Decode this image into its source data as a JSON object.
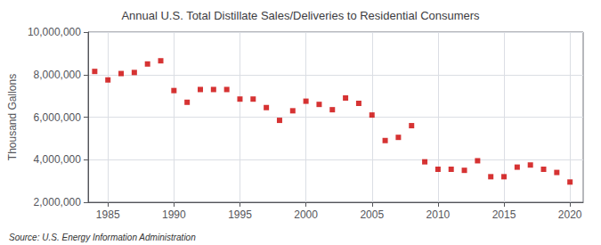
{
  "chart_data": {
    "type": "scatter",
    "title": "Annual U.S. Total Distillate Sales/Deliveries to Residential Consumers",
    "ylabel": "Thousand Gallons",
    "annotations": [
      "Source: U.S. Energy Information Administration"
    ],
    "x": [
      1984,
      1985,
      1986,
      1987,
      1988,
      1989,
      1990,
      1991,
      1992,
      1993,
      1994,
      1995,
      1996,
      1997,
      1998,
      1999,
      2000,
      2001,
      2002,
      2003,
      2004,
      2005,
      2006,
      2007,
      2008,
      2009,
      2010,
      2011,
      2012,
      2013,
      2014,
      2015,
      2016,
      2017,
      2018,
      2019,
      2020
    ],
    "values": [
      8150000,
      7750000,
      8050000,
      8100000,
      8500000,
      8650000,
      7250000,
      6700000,
      7300000,
      7300000,
      7300000,
      6850000,
      6850000,
      6450000,
      5850000,
      6300000,
      6750000,
      6600000,
      6350000,
      6900000,
      6650000,
      6100000,
      4900000,
      5050000,
      5600000,
      3900000,
      3550000,
      3550000,
      3500000,
      3950000,
      3200000,
      3200000,
      3650000,
      3750000,
      3550000,
      3400000,
      2950000
    ],
    "color": "#cc0000",
    "marker": "square",
    "xlim": [
      1983.5,
      2021
    ],
    "xticks": [
      1985,
      1990,
      1995,
      2000,
      2005,
      2010,
      2015,
      2020
    ],
    "ylim": [
      2000000,
      10000000
    ],
    "yticks": [
      {
        "value": 2000000,
        "label": "2,000,000"
      },
      {
        "value": 4000000,
        "label": "4,000,000"
      },
      {
        "value": 6000000,
        "label": "6,000,000"
      },
      {
        "value": 8000000,
        "label": "8,000,000"
      },
      {
        "value": 10000000,
        "label": "10,000,000"
      }
    ],
    "grid": true
  }
}
